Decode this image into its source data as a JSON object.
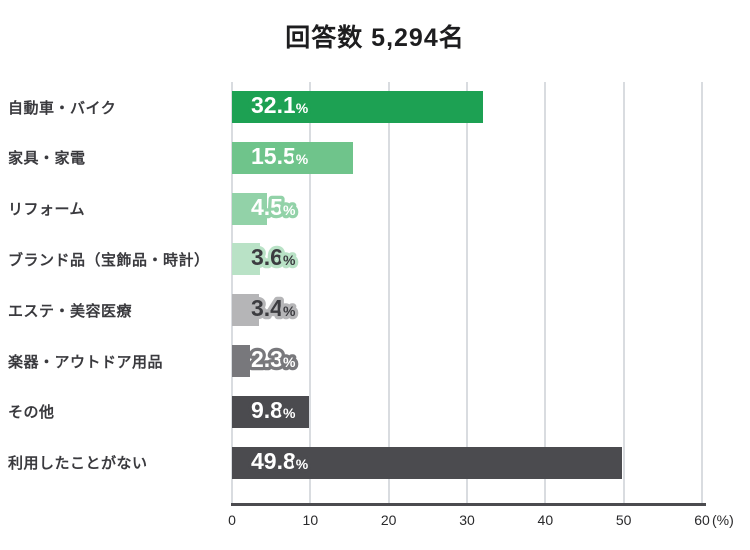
{
  "title": "回答数 5,294名",
  "chart_data": {
    "type": "bar",
    "orientation": "horizontal",
    "title": "回答数 5,294名",
    "categories": [
      "自動車・バイク",
      "家具・家電",
      "リフォーム",
      "ブランド品（宝飾品・時計）",
      "エステ・美容医療",
      "楽器・アウトドア用品",
      "その他",
      "利用したことがない"
    ],
    "values": [
      32.1,
      15.5,
      4.5,
      3.6,
      3.4,
      2.3,
      9.8,
      49.8
    ],
    "unit": "%",
    "xlim": [
      0,
      60
    ],
    "xticks": [
      0,
      10,
      20,
      30,
      40,
      50,
      60
    ],
    "axis_unit_label": "(%)",
    "grid": true,
    "legend": "none",
    "bar_colors": [
      "#1da153",
      "#6fc48b",
      "#92d2a8",
      "#b9e2c6",
      "#b5b5b7",
      "#78787c",
      "#4b4b4f",
      "#4b4b4f"
    ],
    "value_label_colors": [
      "#ffffff",
      "#ffffff",
      "#ffffff",
      "#3c3c40",
      "#3c3c40",
      "#ffffff",
      "#ffffff",
      "#ffffff"
    ]
  }
}
